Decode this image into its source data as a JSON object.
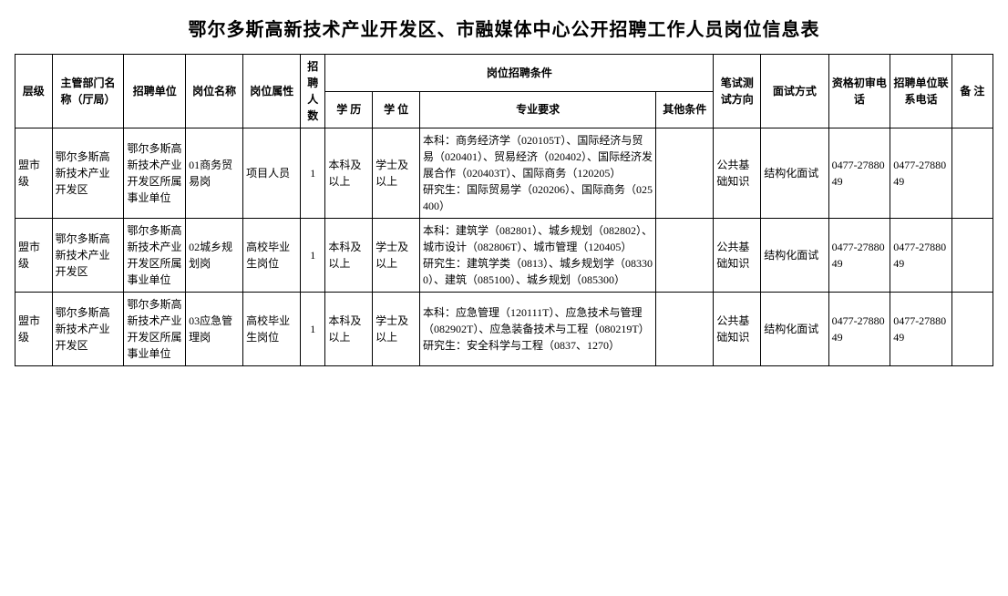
{
  "title": "鄂尔多斯高新技术产业开发区、市融媒体中心公开招聘工作人员岗位信息表",
  "headers": {
    "level": "层级",
    "dept": "主管部门名称（厅局）",
    "unit": "招聘单位",
    "posname": "岗位名称",
    "posattr": "岗位属性",
    "count": "招聘人数",
    "conditions": "岗位招聘条件",
    "edu": "学 历",
    "degree": "学 位",
    "major": "专业要求",
    "other": "其他条件",
    "written": "笔试测试方向",
    "interview": "面试方式",
    "phone1": "资格初审电话",
    "phone2": "招聘单位联系电话",
    "remark": "备 注"
  },
  "rows": [
    {
      "level": "盟市级",
      "dept": "鄂尔多斯高新技术产业开发区",
      "unit": "鄂尔多斯高新技术产业开发区所属事业单位",
      "posname": "01商务贸易岗",
      "posattr": "项目人员",
      "count": "1",
      "edu": "本科及以上",
      "degree": "学士及以上",
      "major": "本科：商务经济学（020105T）、国际经济与贸易（020401）、贸易经济（020402）、国际经济发展合作（020403T）、国际商务（120205）\n研究生：国际贸易学（020206）、国际商务（025400）",
      "other": "",
      "written": "公共基础知识",
      "interview": "结构化面试",
      "phone1": "0477-2788049",
      "phone2": "0477-2788049",
      "remark": ""
    },
    {
      "level": "盟市级",
      "dept": "鄂尔多斯高新技术产业开发区",
      "unit": "鄂尔多斯高新技术产业开发区所属事业单位",
      "posname": "02城乡规划岗",
      "posattr": "高校毕业生岗位",
      "count": "1",
      "edu": "本科及以上",
      "degree": "学士及以上",
      "major": "本科：建筑学（082801）、城乡规划（082802）、城市设计（082806T）、城市管理（120405）\n研究生：建筑学类（0813）、城乡规划学（083300）、建筑（085100）、城乡规划（085300）",
      "other": "",
      "written": "公共基础知识",
      "interview": "结构化面试",
      "phone1": "0477-2788049",
      "phone2": "0477-2788049",
      "remark": ""
    },
    {
      "level": "盟市级",
      "dept": "鄂尔多斯高新技术产业开发区",
      "unit": "鄂尔多斯高新技术产业开发区所属事业单位",
      "posname": "03应急管理岗",
      "posattr": "高校毕业生岗位",
      "count": "1",
      "edu": "本科及以上",
      "degree": "学士及以上",
      "major": "本科：应急管理（120111T）、应急技术与管理（082902T）、应急装备技术与工程（080219T）\n研究生：安全科学与工程（0837、1270）",
      "other": "",
      "written": "公共基础知识",
      "interview": "结构化面试",
      "phone1": "0477-2788049",
      "phone2": "0477-2788049",
      "remark": ""
    }
  ]
}
